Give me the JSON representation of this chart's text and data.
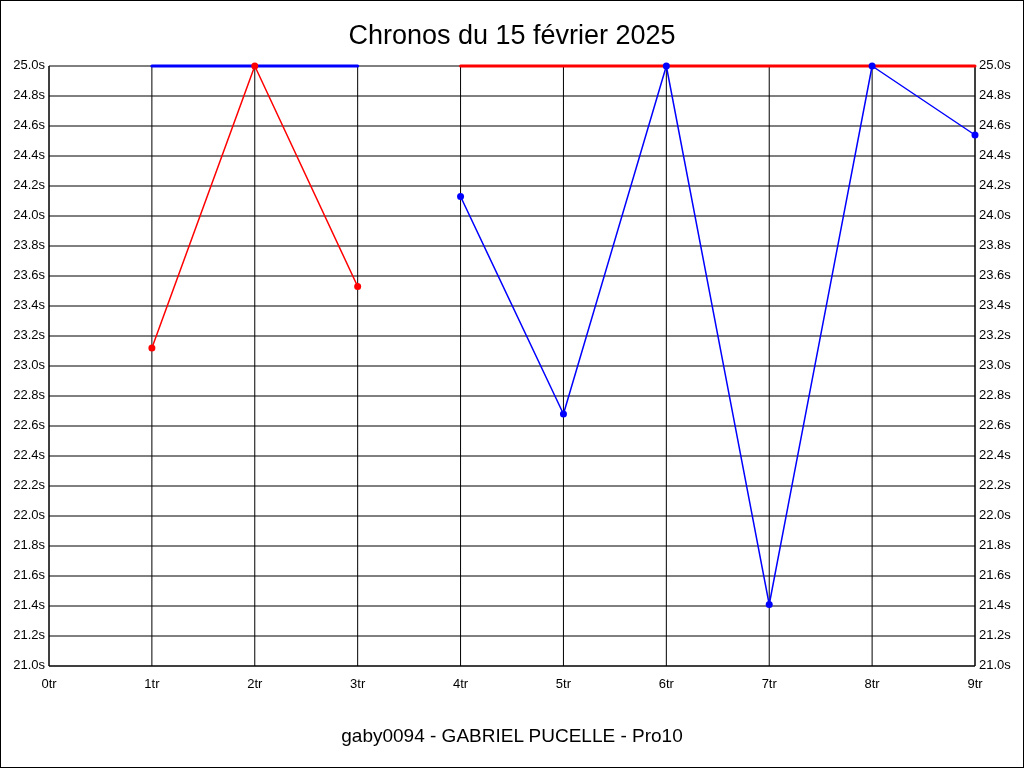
{
  "chart_data": {
    "type": "line",
    "title": "Chronos du 15 février 2025",
    "annotations": [
      "gaby0094 - GABRIEL PUCELLE - Pro10"
    ],
    "xlim": [
      0,
      9
    ],
    "xticks": [
      {
        "value": 0,
        "label": "0tr"
      },
      {
        "value": 1,
        "label": "1tr"
      },
      {
        "value": 2,
        "label": "2tr"
      },
      {
        "value": 3,
        "label": "3tr"
      },
      {
        "value": 4,
        "label": "4tr"
      },
      {
        "value": 5,
        "label": "5tr"
      },
      {
        "value": 6,
        "label": "6tr"
      },
      {
        "value": 7,
        "label": "7tr"
      },
      {
        "value": 8,
        "label": "8tr"
      },
      {
        "value": 9,
        "label": "9tr"
      }
    ],
    "ylim": [
      21,
      25
    ],
    "yticks": [
      {
        "value": 21,
        "label": "21.0s"
      },
      {
        "value": 21.2,
        "label": "21.2s"
      },
      {
        "value": 21.4,
        "label": "21.4s"
      },
      {
        "value": 21.6,
        "label": "21.6s"
      },
      {
        "value": 21.8,
        "label": "21.8s"
      },
      {
        "value": 22,
        "label": "22.0s"
      },
      {
        "value": 22.2,
        "label": "22.2s"
      },
      {
        "value": 22.4,
        "label": "22.4s"
      },
      {
        "value": 22.6,
        "label": "22.6s"
      },
      {
        "value": 22.8,
        "label": "22.8s"
      },
      {
        "value": 23,
        "label": "23.0s"
      },
      {
        "value": 23.2,
        "label": "23.2s"
      },
      {
        "value": 23.4,
        "label": "23.4s"
      },
      {
        "value": 23.6,
        "label": "23.6s"
      },
      {
        "value": 23.8,
        "label": "23.8s"
      },
      {
        "value": 24,
        "label": "24.0s"
      },
      {
        "value": 24.2,
        "label": "24.2s"
      },
      {
        "value": 24.4,
        "label": "24.4s"
      },
      {
        "value": 24.6,
        "label": "24.6s"
      },
      {
        "value": 24.8,
        "label": "24.8s"
      },
      {
        "value": 25,
        "label": "25.0s"
      }
    ],
    "y2lim": [
      21,
      25
    ],
    "y2ticks": [
      {
        "value": 21,
        "label": "21.0s"
      },
      {
        "value": 21.2,
        "label": "21.2s"
      },
      {
        "value": 21.4,
        "label": "21.4s"
      },
      {
        "value": 21.6,
        "label": "21.6s"
      },
      {
        "value": 21.8,
        "label": "21.8s"
      },
      {
        "value": 22,
        "label": "22.0s"
      },
      {
        "value": 22.2,
        "label": "22.2s"
      },
      {
        "value": 22.4,
        "label": "22.4s"
      },
      {
        "value": 22.6,
        "label": "22.6s"
      },
      {
        "value": 22.8,
        "label": "22.8s"
      },
      {
        "value": 23,
        "label": "23.0s"
      },
      {
        "value": 23.2,
        "label": "23.2s"
      },
      {
        "value": 23.4,
        "label": "23.4s"
      },
      {
        "value": 23.6,
        "label": "23.6s"
      },
      {
        "value": 23.8,
        "label": "23.8s"
      },
      {
        "value": 24,
        "label": "24.0s"
      },
      {
        "value": 24.2,
        "label": "24.2s"
      },
      {
        "value": 24.4,
        "label": "24.4s"
      },
      {
        "value": 24.6,
        "label": "24.6s"
      },
      {
        "value": 24.8,
        "label": "24.8s"
      },
      {
        "value": 25,
        "label": "25.0s"
      }
    ],
    "grid": true,
    "line_style": "solid",
    "series": [
      {
        "color": "#0000ff",
        "x": [
          1,
          3
        ],
        "values": [
          25,
          25
        ],
        "marker": "none"
      },
      {
        "color": "#ff0000",
        "x": [
          4,
          9
        ],
        "values": [
          25,
          25
        ],
        "marker": "none"
      },
      {
        "color": "#ff0000",
        "x": [
          1,
          2,
          3
        ],
        "values": [
          23.12,
          25,
          23.53
        ],
        "marker": "circle"
      },
      {
        "color": "#0000ff",
        "x": [
          4,
          5,
          6,
          7,
          8,
          9
        ],
        "values": [
          24.13,
          22.68,
          25,
          21.41,
          25,
          24.54
        ],
        "marker": "circle"
      }
    ]
  }
}
